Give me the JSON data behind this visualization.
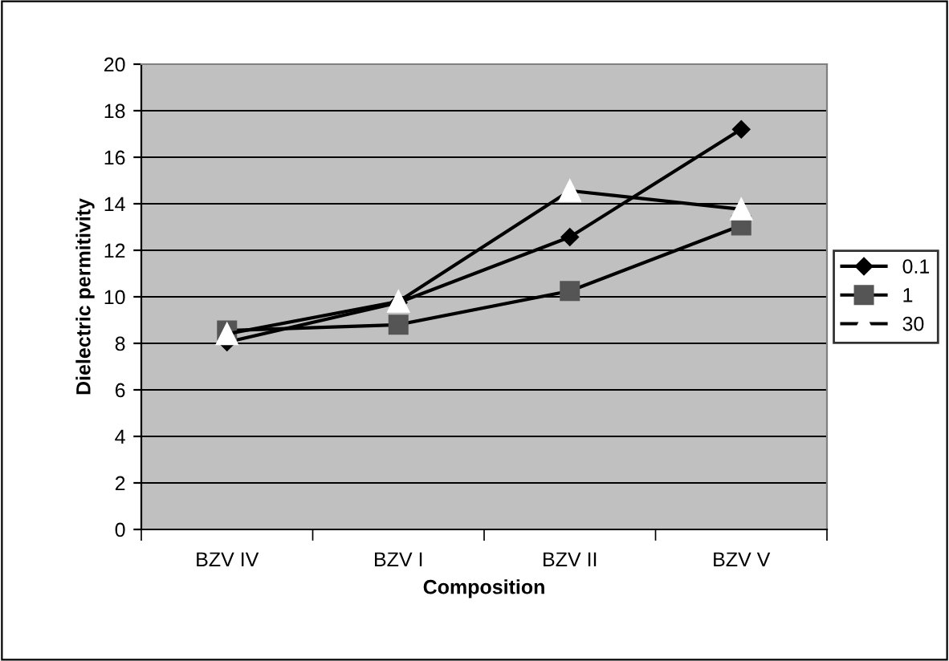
{
  "chart_data": {
    "type": "line",
    "xlabel": "Composition",
    "ylabel": "Dielectric permitivity",
    "categories": [
      "BZV IV",
      "BZV I",
      "BZV II",
      "BZV V"
    ],
    "series": [
      {
        "name": "0.1",
        "color": "#000000",
        "marker": "diamond",
        "values": [
          8.05,
          9.75,
          12.57,
          17.2
        ]
      },
      {
        "name": "1",
        "color": "#000000",
        "marker": "square",
        "values": [
          8.55,
          8.8,
          10.25,
          13.07
        ]
      },
      {
        "name": "30",
        "color": "#000000",
        "marker": "triangle",
        "values": [
          8.4,
          9.8,
          14.56,
          13.76
        ]
      }
    ],
    "ylim": [
      0,
      20
    ],
    "yticks": [
      0,
      2,
      4,
      6,
      8,
      10,
      12,
      14,
      16,
      18,
      20
    ],
    "grid": "y",
    "legend": "right"
  }
}
